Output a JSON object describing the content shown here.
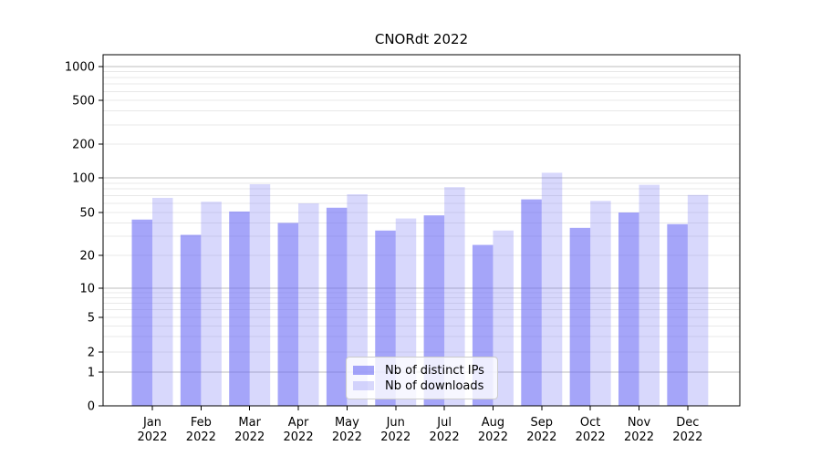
{
  "chart_data": {
    "type": "bar",
    "title": "CNORdt 2022",
    "categories": [
      "Jan",
      "Feb",
      "Mar",
      "Apr",
      "May",
      "Jun",
      "Jul",
      "Aug",
      "Sep",
      "Oct",
      "Nov",
      "Dec"
    ],
    "x_sub_label": "2022",
    "series": [
      {
        "name": "Nb of distinct IPs",
        "color": "rgba(110,110,245,0.62)",
        "values": [
          43,
          31,
          51,
          40,
          55,
          34,
          47,
          25,
          65,
          36,
          50,
          39
        ]
      },
      {
        "name": "Nb of downloads",
        "color": "rgba(110,110,245,0.27)",
        "values": [
          67,
          62,
          88,
          60,
          72,
          44,
          83,
          34,
          111,
          63,
          87,
          71
        ]
      }
    ],
    "y_axis": {
      "ticks": [
        0,
        1,
        2,
        5,
        10,
        20,
        50,
        100,
        200,
        500,
        1000
      ],
      "scale": "log-like with 0 baseline",
      "major_gridlines": [
        1,
        10,
        100,
        1000
      ],
      "grid": true
    },
    "legend_position": "lower center"
  }
}
